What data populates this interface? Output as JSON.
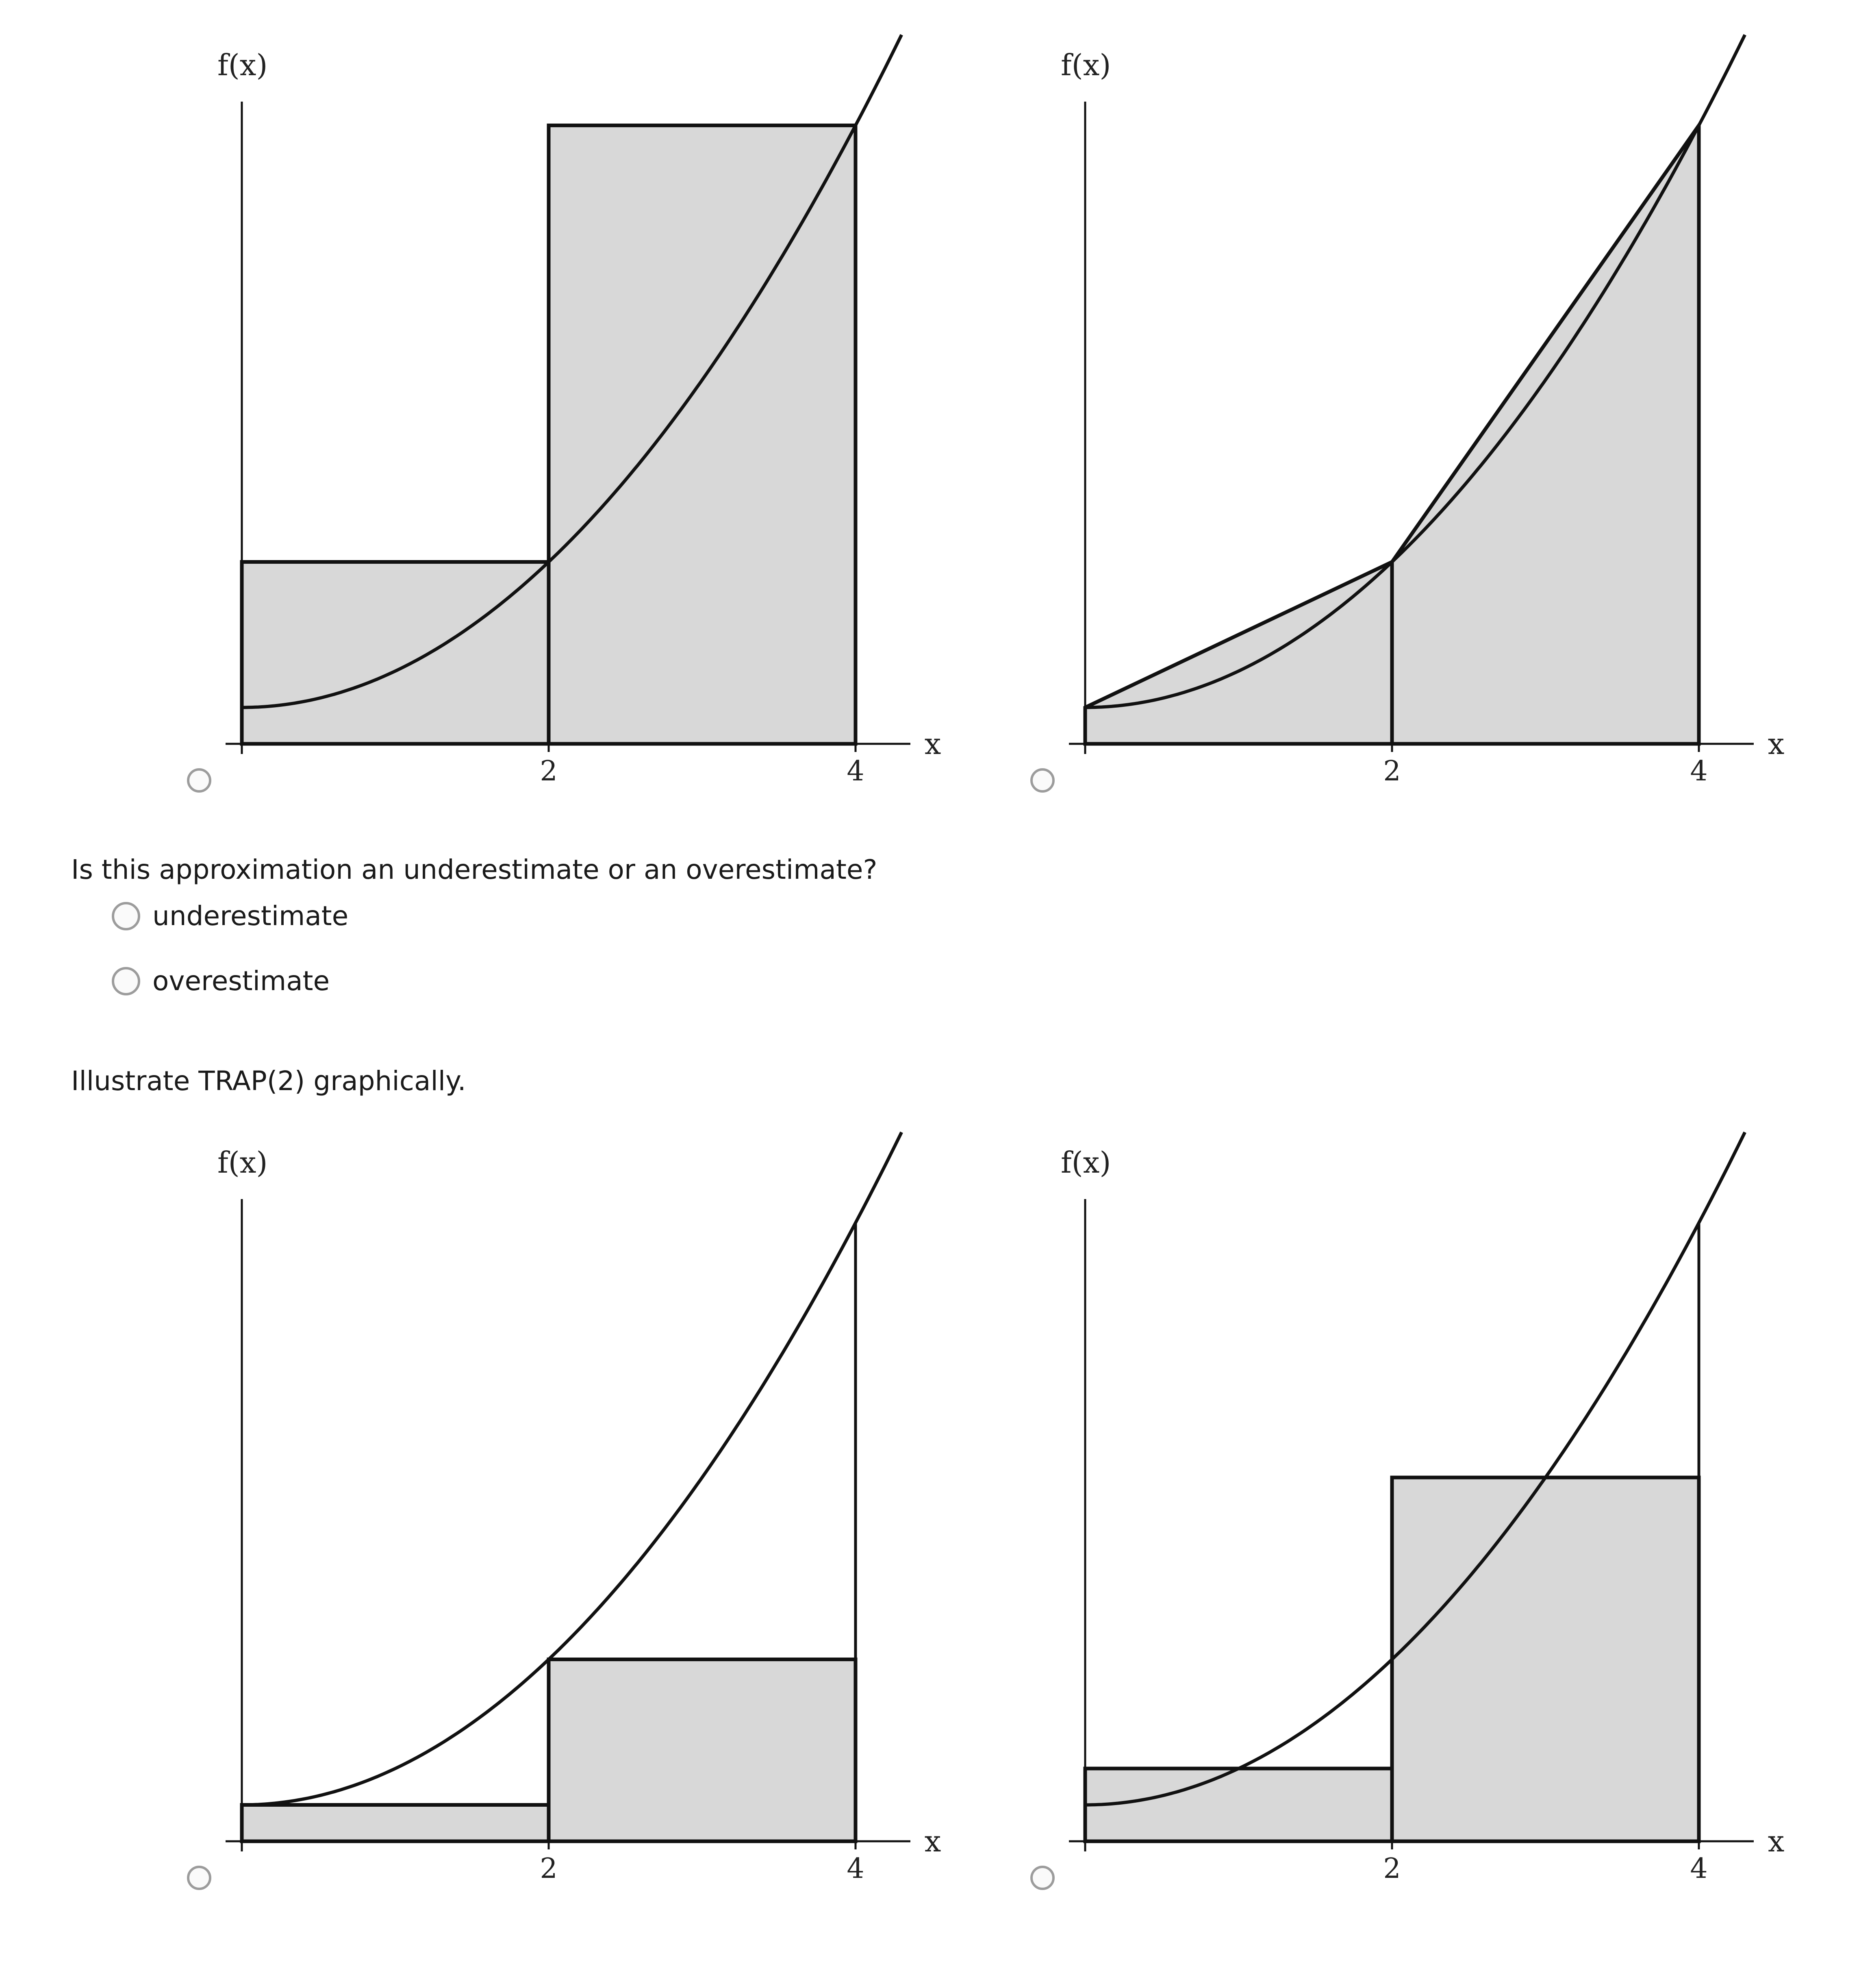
{
  "axes": {
    "y_label": "f(x)",
    "x_label": "x",
    "x_ticks": [
      "2",
      "4"
    ]
  },
  "colors": {
    "fill": "#d8d8d8",
    "stroke": "#111111",
    "radio_border": "#9c9c9c"
  },
  "question_over_under": {
    "text": "Is this approximation an underestimate or an overestimate?",
    "options": [
      "underestimate",
      "overestimate"
    ]
  },
  "question_trap": {
    "text": "Illustrate TRAP(2) graphically."
  },
  "chart_data": [
    {
      "type": "area",
      "method": "right-endpoint",
      "f": "1 + x^2",
      "xlim": [
        0,
        4.3
      ],
      "ylim": [
        0,
        19
      ],
      "x_ticks": [
        2,
        4
      ],
      "partition": [
        0,
        2,
        4
      ],
      "heights": [
        5,
        17
      ]
    },
    {
      "type": "area",
      "method": "trapezoid",
      "f": "1 + x^2",
      "xlim": [
        0,
        4.3
      ],
      "ylim": [
        0,
        19
      ],
      "x_ticks": [
        2,
        4
      ],
      "partition": [
        0,
        2,
        4
      ],
      "heights": [
        1,
        5,
        17
      ]
    },
    {
      "type": "area",
      "method": "left-endpoint",
      "f": "1 + x^2",
      "xlim": [
        0,
        4.3
      ],
      "ylim": [
        0,
        19
      ],
      "x_ticks": [
        2,
        4
      ],
      "partition": [
        0,
        2,
        4
      ],
      "heights": [
        1,
        5
      ]
    },
    {
      "type": "area",
      "method": "midpoint",
      "f": "1 + x^2",
      "xlim": [
        0,
        4.3
      ],
      "ylim": [
        0,
        19
      ],
      "x_ticks": [
        2,
        4
      ],
      "partition": [
        0,
        2,
        4
      ],
      "heights": [
        2,
        10
      ]
    }
  ]
}
